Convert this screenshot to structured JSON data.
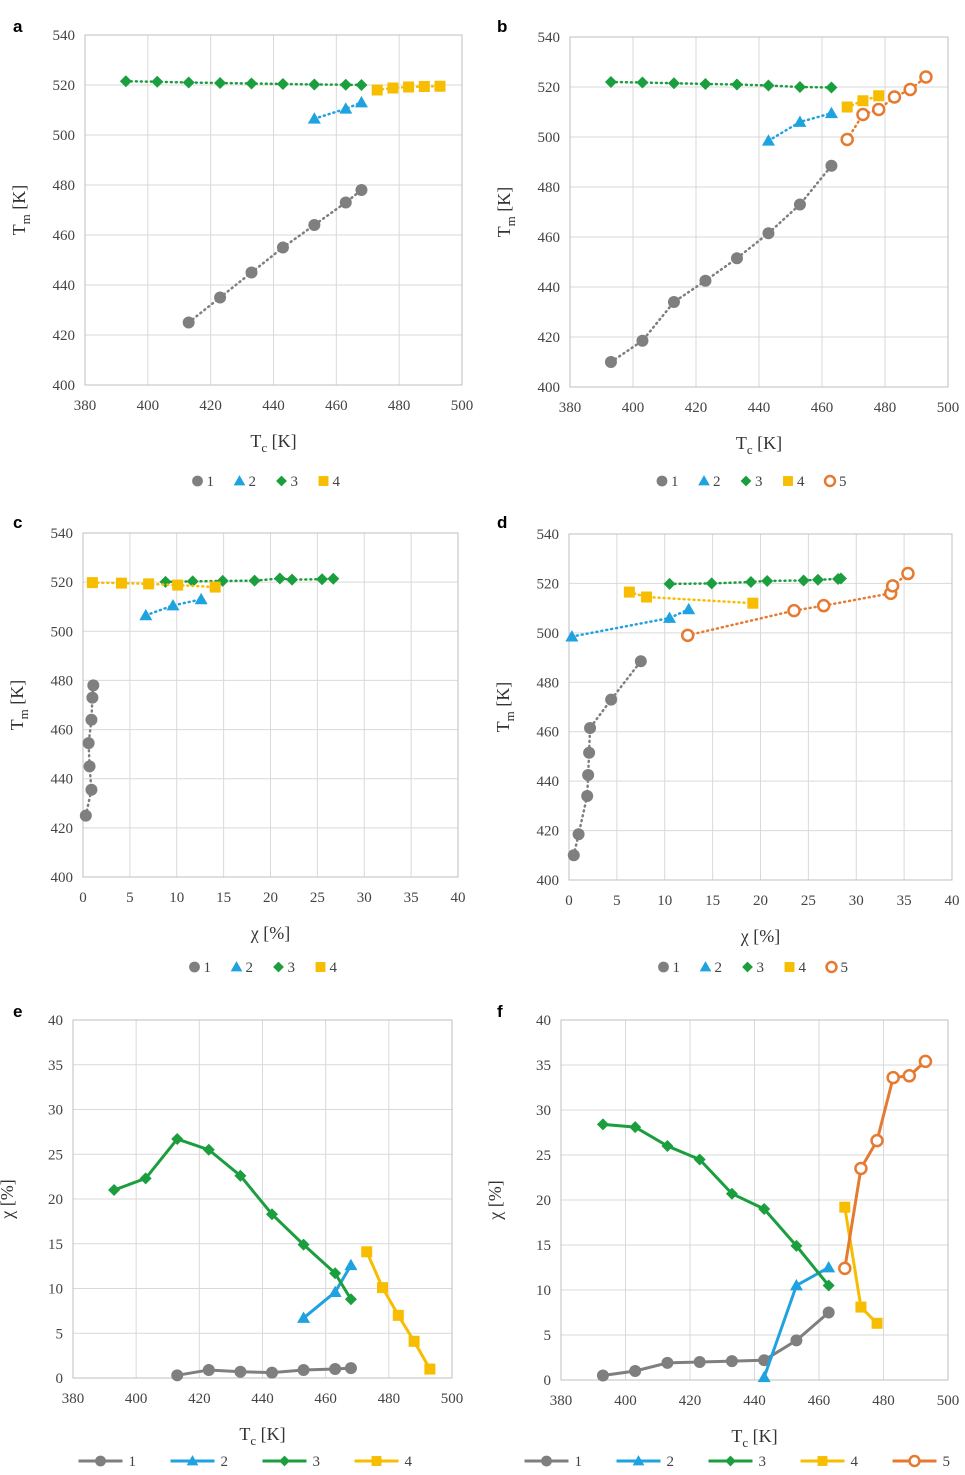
{
  "colors": {
    "1": "#7f7f7f",
    "2": "#1fa2e0",
    "3": "#1b9e3e",
    "4": "#f7bd00",
    "5": "#e67a30"
  },
  "chart_data": [
    {
      "panel": "a",
      "type": "scatter",
      "line_style": "dotted",
      "xlabel_main": "T",
      "xlabel_sub": "c",
      "xlabel_unit": " [K]",
      "ylabel_main": "T",
      "ylabel_sub": "m",
      "ylabel_unit": " [K]",
      "xlim": [
        380,
        500
      ],
      "xstep": 20,
      "ylim": [
        400,
        540
      ],
      "ystep": 20,
      "grid": true,
      "legend": "bottom",
      "series": [
        {
          "name": "1",
          "x": [
            413,
            423,
            433,
            443,
            453,
            463,
            468
          ],
          "y": [
            425,
            435,
            445,
            455,
            464,
            473,
            478
          ]
        },
        {
          "name": "2",
          "x": [
            453,
            463,
            468
          ],
          "y": [
            506.5,
            510.5,
            513
          ]
        },
        {
          "name": "3",
          "x": [
            393,
            403,
            413,
            423,
            433,
            443,
            453,
            463,
            468
          ],
          "y": [
            521.5,
            521.3,
            521,
            520.8,
            520.6,
            520.4,
            520.2,
            520.1,
            520
          ]
        },
        {
          "name": "4",
          "x": [
            473,
            478,
            483,
            488,
            493
          ],
          "y": [
            518,
            518.8,
            519.2,
            519.4,
            519.5
          ]
        }
      ]
    },
    {
      "panel": "b",
      "type": "scatter",
      "line_style": "dotted",
      "xlabel_main": "T",
      "xlabel_sub": "c",
      "xlabel_unit": " [K]",
      "ylabel_main": "T",
      "ylabel_sub": "m",
      "ylabel_unit": " [K]",
      "xlim": [
        380,
        500
      ],
      "xstep": 20,
      "ylim": [
        400,
        540
      ],
      "ystep": 20,
      "grid": true,
      "legend": "bottom",
      "series": [
        {
          "name": "1",
          "x": [
            393,
            403,
            413,
            423,
            433,
            443,
            453,
            463
          ],
          "y": [
            410,
            418.5,
            434,
            442.5,
            451.5,
            461.5,
            473,
            488.5
          ]
        },
        {
          "name": "2",
          "x": [
            443,
            453,
            463
          ],
          "y": [
            498.5,
            506,
            509.5
          ]
        },
        {
          "name": "3",
          "x": [
            393,
            403,
            413,
            423,
            433,
            443,
            453,
            463
          ],
          "y": [
            522,
            521.8,
            521.5,
            521.2,
            521,
            520.6,
            520,
            519.8
          ]
        },
        {
          "name": "4",
          "x": [
            468,
            473,
            478
          ],
          "y": [
            512,
            514.5,
            516.5
          ]
        },
        {
          "name": "5",
          "x": [
            468,
            473,
            478,
            483,
            488,
            493
          ],
          "y": [
            499,
            509,
            511,
            516,
            519,
            524
          ]
        }
      ]
    },
    {
      "panel": "c",
      "type": "scatter",
      "line_style": "dotted",
      "xlabel_main": "χ",
      "xlabel_sub": "",
      "xlabel_unit": " [%]",
      "ylabel_main": "T",
      "ylabel_sub": "m",
      "ylabel_unit": " [K]",
      "xlim": [
        0,
        40
      ],
      "xstep": 5,
      "ylim": [
        400,
        540
      ],
      "ystep": 20,
      "grid": true,
      "legend": "bottom",
      "series": [
        {
          "name": "1",
          "x": [
            0.3,
            0.9,
            0.7,
            0.6,
            0.9,
            1.0,
            1.1
          ],
          "y": [
            425,
            435.5,
            445,
            454.5,
            464,
            473,
            478
          ]
        },
        {
          "name": "2",
          "x": [
            6.7,
            9.6,
            12.6
          ],
          "y": [
            506.5,
            510.5,
            513
          ]
        },
        {
          "name": "3",
          "x": [
            8.8,
            11.7,
            14.9,
            18.3,
            21.0,
            22.3,
            25.5,
            26.7
          ],
          "y": [
            520.1,
            520.3,
            520.5,
            520.6,
            521.5,
            521,
            521.2,
            521.4
          ]
        },
        {
          "name": "4",
          "x": [
            1.0,
            4.1,
            7.0,
            10.1,
            14.1
          ],
          "y": [
            519.8,
            519.6,
            519.3,
            518.8,
            518
          ]
        }
      ]
    },
    {
      "panel": "d",
      "type": "scatter",
      "line_style": "dotted",
      "xlabel_main": "χ",
      "xlabel_sub": "",
      "xlabel_unit": " [%]",
      "ylabel_main": "T",
      "ylabel_sub": "m",
      "ylabel_unit": " [K]",
      "xlim": [
        0,
        40
      ],
      "xstep": 5,
      "ylim": [
        400,
        540
      ],
      "ystep": 20,
      "grid": true,
      "legend": "bottom",
      "series": [
        {
          "name": "1",
          "x": [
            0.5,
            1.0,
            1.9,
            2.0,
            2.1,
            2.2,
            4.4,
            7.5
          ],
          "y": [
            410,
            418.5,
            434,
            442.5,
            451.5,
            461.5,
            473,
            488.5
          ]
        },
        {
          "name": "2",
          "x": [
            0.3,
            10.5,
            12.5
          ],
          "y": [
            498.5,
            506,
            509.5
          ]
        },
        {
          "name": "3",
          "x": [
            10.5,
            14.9,
            19.0,
            20.7,
            24.5,
            26.0,
            28.1,
            28.4
          ],
          "y": [
            519.8,
            520,
            520.6,
            521,
            521.2,
            521.5,
            521.8,
            522
          ]
        },
        {
          "name": "4",
          "x": [
            6.3,
            8.1,
            19.2
          ],
          "y": [
            516.5,
            514.5,
            512
          ]
        },
        {
          "name": "5",
          "x": [
            12.4,
            23.5,
            26.6,
            33.6,
            33.8,
            35.4
          ],
          "y": [
            499,
            509,
            511,
            516,
            519,
            524
          ]
        }
      ]
    },
    {
      "panel": "e",
      "type": "line",
      "line_style": "solid",
      "xlabel_main": "T",
      "xlabel_sub": "c",
      "xlabel_unit": " [K]",
      "ylabel_main": "χ",
      "ylabel_sub": "",
      "ylabel_unit": " [%]",
      "xlim": [
        380,
        500
      ],
      "xstep": 20,
      "ylim": [
        0,
        40
      ],
      "ystep": 5,
      "grid": true,
      "legend": "bottom",
      "series": [
        {
          "name": "1",
          "x": [
            413,
            423,
            433,
            443,
            453,
            463,
            468
          ],
          "y": [
            0.3,
            0.9,
            0.7,
            0.6,
            0.9,
            1.0,
            1.1
          ]
        },
        {
          "name": "2",
          "x": [
            453,
            463,
            468
          ],
          "y": [
            6.7,
            9.6,
            12.6
          ]
        },
        {
          "name": "3",
          "x": [
            393,
            403,
            413,
            423,
            433,
            443,
            453,
            463,
            468
          ],
          "y": [
            21.0,
            22.3,
            26.7,
            25.5,
            22.6,
            18.3,
            14.9,
            11.7,
            8.8
          ]
        },
        {
          "name": "4",
          "x": [
            473,
            478,
            483,
            488,
            493
          ],
          "y": [
            14.1,
            10.1,
            7.0,
            4.1,
            1.0
          ]
        }
      ]
    },
    {
      "panel": "f",
      "type": "line",
      "line_style": "solid",
      "xlabel_main": "T",
      "xlabel_sub": "c",
      "xlabel_unit": " [K]",
      "ylabel_main": "χ",
      "ylabel_sub": "",
      "ylabel_unit": " [%]",
      "xlim": [
        380,
        500
      ],
      "xstep": 20,
      "ylim": [
        0,
        40
      ],
      "ystep": 5,
      "grid": true,
      "legend": "bottom",
      "series": [
        {
          "name": "1",
          "x": [
            393,
            403,
            413,
            423,
            433,
            443,
            453,
            463
          ],
          "y": [
            0.5,
            1.0,
            1.9,
            2.0,
            2.1,
            2.2,
            4.4,
            7.5
          ]
        },
        {
          "name": "2",
          "x": [
            443,
            453,
            463
          ],
          "y": [
            0.3,
            10.5,
            12.5
          ]
        },
        {
          "name": "3",
          "x": [
            393,
            403,
            413,
            423,
            433,
            443,
            453,
            463
          ],
          "y": [
            28.4,
            28.1,
            26.0,
            24.5,
            20.7,
            19.0,
            14.9,
            10.5
          ]
        },
        {
          "name": "4",
          "x": [
            468,
            473,
            478
          ],
          "y": [
            19.2,
            8.1,
            6.3
          ]
        },
        {
          "name": "5",
          "x": [
            468,
            473,
            478,
            483,
            488,
            493
          ],
          "y": [
            12.4,
            23.5,
            26.6,
            33.6,
            33.8,
            35.4
          ]
        }
      ]
    }
  ]
}
